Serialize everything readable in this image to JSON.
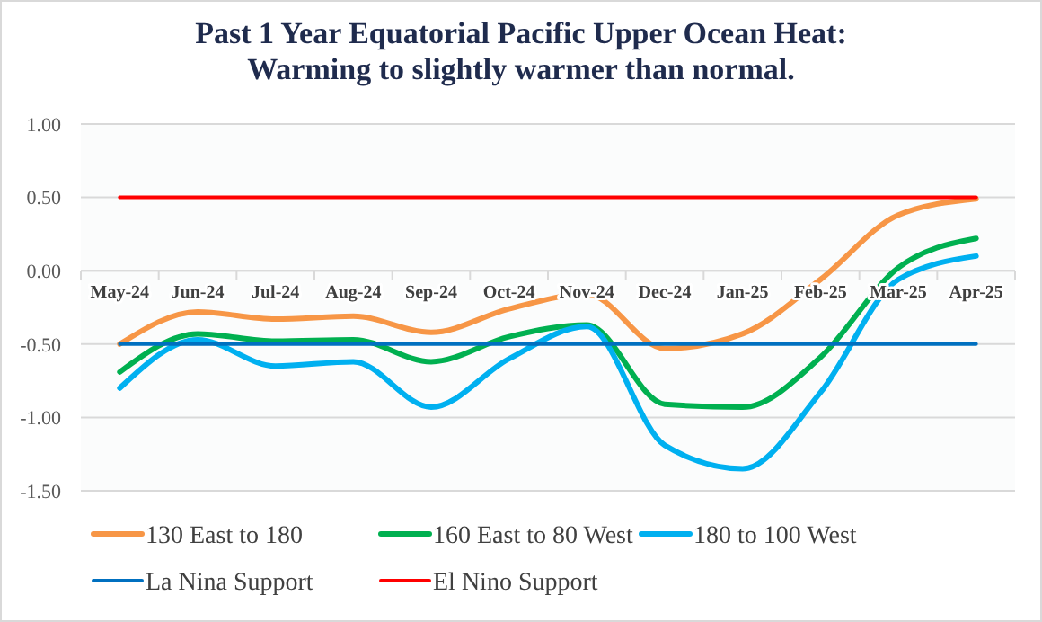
{
  "chart_data": {
    "type": "line",
    "title": "Past 1 Year Equatorial Pacific Upper Ocean Heat:\nWarming to slightly warmer than normal.",
    "categories": [
      "May-24",
      "Jun-24",
      "Jul-24",
      "Aug-24",
      "Sep-24",
      "Oct-24",
      "Nov-24",
      "Dec-24",
      "Jan-25",
      "Feb-25",
      "Mar-25",
      "Apr-25"
    ],
    "series": [
      {
        "name": "130 East to 180",
        "color": "#f79646",
        "values": [
          -0.5,
          -0.28,
          -0.33,
          -0.31,
          -0.42,
          -0.26,
          -0.16,
          -0.53,
          -0.43,
          -0.06,
          0.38,
          0.49
        ]
      },
      {
        "name": "160 East to 80 West",
        "color": "#00b050",
        "values": [
          -0.69,
          -0.43,
          -0.48,
          -0.47,
          -0.62,
          -0.45,
          -0.37,
          -0.91,
          -0.93,
          -0.59,
          0.02,
          0.22
        ]
      },
      {
        "name": "180 to 100 West",
        "color": "#00b0f0",
        "values": [
          -0.8,
          -0.47,
          -0.65,
          -0.62,
          -0.93,
          -0.6,
          -0.38,
          -1.19,
          -1.35,
          -0.83,
          -0.06,
          0.1
        ]
      },
      {
        "name": "La Nina Support",
        "color": "#0070c0",
        "values": [
          -0.5,
          -0.5,
          -0.5,
          -0.5,
          -0.5,
          -0.5,
          -0.5,
          -0.5,
          -0.5,
          -0.5,
          -0.5,
          -0.5
        ]
      },
      {
        "name": "El Nino Support",
        "color": "#ff0000",
        "values": [
          0.5,
          0.5,
          0.5,
          0.5,
          0.5,
          0.5,
          0.5,
          0.5,
          0.5,
          0.5,
          0.5,
          0.5
        ]
      }
    ],
    "ylim": [
      -1.5,
      1.0
    ],
    "yticks": [
      {
        "value": -1.5,
        "label": "-1.50"
      },
      {
        "value": -1.0,
        "label": "-1.00"
      },
      {
        "value": -0.5,
        "label": "-0.50"
      },
      {
        "value": 0,
        "label": "0.00"
      },
      {
        "value": 0.5,
        "label": "0.50"
      },
      {
        "value": 1.0,
        "label": "1.00"
      }
    ],
    "grid": "y",
    "legend": "bottom",
    "line_style": "solid"
  }
}
